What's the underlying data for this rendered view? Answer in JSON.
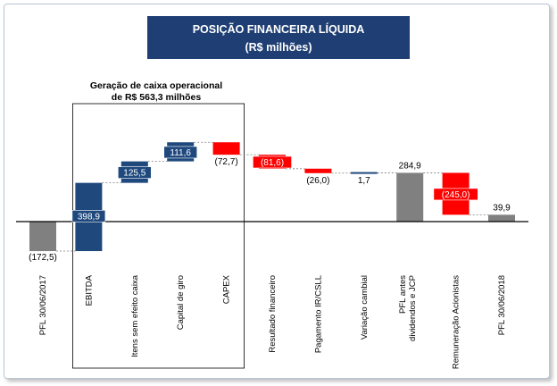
{
  "title": {
    "line1": "POSIÇÃO FINANCEIRA LÍQUIDA",
    "line2": "(R$ milhões)"
  },
  "annotation": {
    "line1": "Geração de caixa operacional",
    "line2": "de R$ 563,3 milhões"
  },
  "colors": {
    "increase": "#1f497d",
    "decrease": "#ff0000",
    "total": "#808080",
    "title_bg": "#1f3f74"
  },
  "chart_data": {
    "type": "bar",
    "subtype": "waterfall",
    "title": "POSIÇÃO FINANCEIRA LÍQUIDA",
    "subtitle": "(R$ milhões)",
    "categories": [
      "PFL 30/06/2017",
      "EBITDA",
      "Itens sem efeito caixa",
      "Capital de giro",
      "CAPEX",
      "Resultado financeiro",
      "Pagamento IR/CSLL",
      "Variação cambial",
      "PFL antes dividendos e JCP",
      "Remuneração Acionistas",
      "PFL 30/06/2018"
    ],
    "values": [
      -172.5,
      398.9,
      125.5,
      111.6,
      -72.7,
      -81.6,
      -26.0,
      1.7,
      284.9,
      -245.0,
      39.9
    ],
    "kinds": [
      "total",
      "increase",
      "increase",
      "increase",
      "decrease",
      "decrease",
      "decrease",
      "increase",
      "total",
      "decrease",
      "total"
    ],
    "data_labels": [
      "(172,5)",
      "398,9",
      "125,5",
      "111,6",
      "(72,7)",
      "(81,6)",
      "(26,0)",
      "1,7",
      "284,9",
      "(245,0)",
      "39,9"
    ],
    "tick_labels": [
      [
        "PFL 30/06/2017"
      ],
      [
        "EBITDA"
      ],
      [
        "Itens sem efeito caixa"
      ],
      [
        "Capital de giro"
      ],
      [
        "CAPEX"
      ],
      [
        "Resultado financeiro"
      ],
      [
        "Pagamento IR/CSLL"
      ],
      [
        "Variação cambial"
      ],
      [
        "PFL antes",
        "dividendos e JCP"
      ],
      [
        "Remuneração Acionistas"
      ],
      [
        "PFL 30/06/2018"
      ]
    ],
    "bracket_groups": [
      "EBITDA",
      "Itens sem efeito caixa",
      "Capital de giro",
      "CAPEX"
    ],
    "grid": false,
    "legend": "none"
  }
}
